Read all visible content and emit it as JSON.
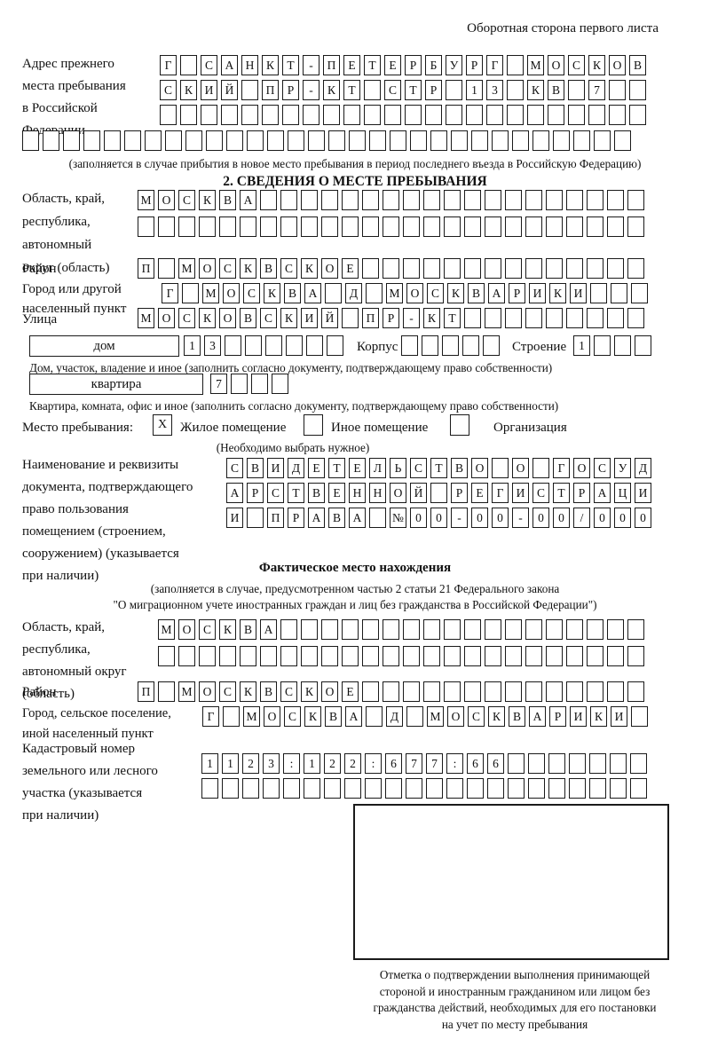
{
  "colors": {
    "ink": "#1a1a1a",
    "background": "#ffffff"
  },
  "page": {
    "header_note": "Оборотная сторона первого листа"
  },
  "prev_address": {
    "label_lines": [
      "Адрес прежнего",
      "места пребывания",
      "в Российской",
      "Федерации"
    ],
    "rows": {
      "r1": [
        "Г",
        "",
        "С",
        "А",
        "Н",
        "К",
        "Т",
        "-",
        "П",
        "Е",
        "Т",
        "Е",
        "Р",
        "Б",
        "У",
        "Р",
        "Г",
        "",
        "М",
        "О",
        "С",
        "К",
        "О",
        "В"
      ],
      "r2": [
        "С",
        "К",
        "И",
        "Й",
        "",
        "П",
        "Р",
        "-",
        "К",
        "Т",
        "",
        "С",
        "Т",
        "Р",
        "",
        "1",
        "3",
        "",
        "К",
        "В",
        "",
        "7",
        "",
        ""
      ],
      "r3": [
        "",
        "",
        "",
        "",
        "",
        "",
        "",
        "",
        "",
        "",
        "",
        "",
        "",
        "",
        "",
        "",
        "",
        "",
        "",
        "",
        "",
        "",
        "",
        ""
      ],
      "r4": [
        "",
        "",
        "",
        "",
        "",
        "",
        "",
        "",
        "",
        "",
        "",
        "",
        "",
        "",
        "",
        "",
        "",
        "",
        "",
        "",
        "",
        "",
        "",
        "",
        "",
        "",
        "",
        "",
        "",
        ""
      ]
    },
    "note": "(заполняется в случае прибытия в новое место пребывания в период последнего въезда в Российскую Федерацию)"
  },
  "section2": {
    "title": "2. СВЕДЕНИЯ О МЕСТЕ ПРЕБЫВАНИЯ",
    "oblast": {
      "label_lines": [
        "Область, край,",
        "республика,",
        "автономный",
        "округ (область)"
      ],
      "row1": [
        "М",
        "О",
        "С",
        "К",
        "В",
        "А",
        "",
        "",
        "",
        "",
        "",
        "",
        "",
        "",
        "",
        "",
        "",
        "",
        "",
        "",
        "",
        "",
        "",
        "",
        ""
      ],
      "row2": [
        "",
        "",
        "",
        "",
        "",
        "",
        "",
        "",
        "",
        "",
        "",
        "",
        "",
        "",
        "",
        "",
        "",
        "",
        "",
        "",
        "",
        "",
        "",
        "",
        ""
      ]
    },
    "raion": {
      "label": "Район",
      "row": [
        "П",
        "",
        "М",
        "О",
        "С",
        "К",
        "В",
        "С",
        "К",
        "О",
        "Е",
        "",
        "",
        "",
        "",
        "",
        "",
        "",
        "",
        "",
        "",
        "",
        "",
        "",
        ""
      ]
    },
    "gorod": {
      "label_lines": [
        "Город или другой",
        "населенный пункт"
      ],
      "row": [
        "Г",
        "",
        "М",
        "О",
        "С",
        "К",
        "В",
        "А",
        "",
        "Д",
        "",
        "М",
        "О",
        "С",
        "К",
        "В",
        "А",
        "Р",
        "И",
        "К",
        "И",
        "",
        "",
        ""
      ]
    },
    "ulitsa": {
      "label": "Улица",
      "row": [
        "М",
        "О",
        "С",
        "К",
        "О",
        "В",
        "С",
        "К",
        "И",
        "Й",
        "",
        "П",
        "Р",
        "-",
        "К",
        "Т",
        "",
        "",
        "",
        "",
        "",
        "",
        "",
        "",
        ""
      ]
    },
    "dom": {
      "box_label": "дом",
      "cells": [
        "1",
        "3",
        "",
        "",
        "",
        "",
        "",
        ""
      ],
      "korpus_label": "Корпус",
      "korpus_cells": [
        "",
        "",
        "",
        "",
        ""
      ],
      "stroenie_label": "Строение",
      "stroenie_cells": [
        "1",
        "",
        "",
        ""
      ]
    },
    "dom_note": "Дом, участок, владение и иное (заполнить согласно документу, подтверждающему право собственности)",
    "kvartira": {
      "box_label": "квартира",
      "cells": [
        "7",
        "",
        "",
        ""
      ]
    },
    "kvartira_note": "Квартира, комната, офис и иное (заполнить согласно документу, подтверждающему право собственности)",
    "mesto": {
      "label": "Место пребывания:",
      "options": [
        {
          "mark": "X",
          "label": "Жилое помещение"
        },
        {
          "mark": "",
          "label": "Иное помещение"
        },
        {
          "mark": "",
          "label": "Организация"
        }
      ],
      "note": "(Необходимо выбрать нужное)"
    }
  },
  "document_block": {
    "label_lines": [
      "Наименование и реквизиты",
      "документа, подтверждающего",
      "право пользования",
      "помещением (строением,",
      "сооружением) (указывается",
      "при наличии)"
    ],
    "rows": {
      "r1": [
        "С",
        "В",
        "И",
        "Д",
        "Е",
        "Т",
        "Е",
        "Л",
        "Ь",
        "С",
        "Т",
        "В",
        "О",
        "",
        "О",
        "",
        "Г",
        "О",
        "С",
        "У",
        "Д"
      ],
      "r2": [
        "А",
        "Р",
        "С",
        "Т",
        "В",
        "Е",
        "Н",
        "Н",
        "О",
        "Й",
        "",
        "Р",
        "Е",
        "Г",
        "И",
        "С",
        "Т",
        "Р",
        "А",
        "Ц",
        "И"
      ],
      "r3": [
        "И",
        "",
        "П",
        "Р",
        "А",
        "В",
        "А",
        "",
        "№",
        "0",
        "0",
        "-",
        "0",
        "0",
        "-",
        "0",
        "0",
        "/",
        "0",
        "0",
        "0"
      ]
    }
  },
  "fact": {
    "title": "Фактическое место нахождения",
    "note_lines": [
      "(заполняется в случае, предусмотренном частью 2 статьи 21 Федерального закона",
      "\"О миграционном учете иностранных граждан и лиц без гражданства в Российской Федерации\")"
    ],
    "oblast": {
      "label_lines": [
        "Область, край,",
        "республика,",
        "автономный округ",
        "(область)"
      ],
      "row1": [
        "М",
        "О",
        "С",
        "К",
        "В",
        "А",
        "",
        "",
        "",
        "",
        "",
        "",
        "",
        "",
        "",
        "",
        "",
        "",
        "",
        "",
        "",
        "",
        "",
        ""
      ],
      "row2": [
        "",
        "",
        "",
        "",
        "",
        "",
        "",
        "",
        "",
        "",
        "",
        "",
        "",
        "",
        "",
        "",
        "",
        "",
        "",
        "",
        "",
        "",
        "",
        ""
      ]
    },
    "raion": {
      "label": "Район",
      "row": [
        "П",
        "",
        "М",
        "О",
        "С",
        "К",
        "В",
        "С",
        "К",
        "О",
        "Е",
        "",
        "",
        "",
        "",
        "",
        "",
        "",
        "",
        "",
        "",
        "",
        "",
        "",
        ""
      ]
    },
    "gorod": {
      "label_lines": [
        "Город, сельское поселение,",
        "иной населенный пункт"
      ],
      "row": [
        "Г",
        "",
        "М",
        "О",
        "С",
        "К",
        "В",
        "А",
        "",
        "Д",
        "",
        "М",
        "О",
        "С",
        "К",
        "В",
        "А",
        "Р",
        "И",
        "К",
        "И",
        ""
      ]
    },
    "kadastr": {
      "label_lines": [
        "Кадастровый номер",
        "земельного или лесного",
        "участка (указывается",
        "при наличии)"
      ],
      "row1": [
        "1",
        "1",
        "2",
        "3",
        ":",
        "1",
        "2",
        "2",
        ":",
        "6",
        "7",
        "7",
        ":",
        "6",
        "6",
        "",
        "",
        "",
        "",
        "",
        "",
        ""
      ],
      "row2": [
        "",
        "",
        "",
        "",
        "",
        "",
        "",
        "",
        "",
        "",
        "",
        "",
        "",
        "",
        "",
        "",
        "",
        "",
        "",
        "",
        "",
        ""
      ]
    }
  },
  "stamp": {
    "caption_lines": [
      "Отметка о подтверждении выполнения принимающей",
      "стороной и иностранным гражданином или лицом без",
      "гражданства действий, необходимых для его постановки",
      "на учет по месту пребывания"
    ]
  }
}
